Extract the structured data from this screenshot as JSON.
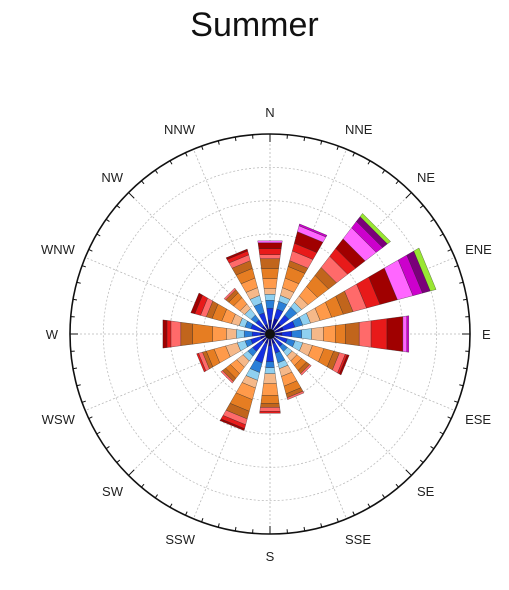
{
  "chart_data": {
    "type": "wind-rose",
    "title": "Summer",
    "directions": [
      "N",
      "NNE",
      "NE",
      "ENE",
      "E",
      "ESE",
      "SE",
      "SSE",
      "S",
      "SSW",
      "SW",
      "WSW",
      "W",
      "WNW",
      "NW",
      "NNW"
    ],
    "rlim": [
      0,
      1
    ],
    "grid": true,
    "band_colors": [
      "#0a0a9a",
      "#1530e0",
      "#2a7fd8",
      "#8fd0f0",
      "#f5b889",
      "#ff9a4a",
      "#e67d22",
      "#c1651c",
      "#ff6a6a",
      "#e81a1a",
      "#a00000",
      "#ff66ff",
      "#cc00cc",
      "#7a007a",
      "#99e633"
    ],
    "stacks": [
      {
        "direction": "N",
        "segments": [
          0.07,
          0.06,
          0.04,
          0.03,
          0.03,
          0.05,
          0.05,
          0.05,
          0.02,
          0.03,
          0.03,
          0.01
        ]
      },
      {
        "direction": "NNE",
        "segments": [
          0.08,
          0.05,
          0.04,
          0.03,
          0.04,
          0.05,
          0.06,
          0.03,
          0.05,
          0.04,
          0.06,
          0.03,
          0.01
        ]
      },
      {
        "direction": "NE",
        "segments": [
          0.07,
          0.05,
          0.05,
          0.03,
          0.04,
          0.06,
          0.07,
          0.05,
          0.07,
          0.05,
          0.06,
          0.07,
          0.04,
          0.03,
          0.02
        ]
      },
      {
        "direction": "ENE",
        "segments": [
          0.07,
          0.06,
          0.04,
          0.04,
          0.05,
          0.06,
          0.06,
          0.05,
          0.07,
          0.07,
          0.09,
          0.08,
          0.05,
          0.04,
          0.03
        ]
      },
      {
        "direction": "E",
        "segments": [
          0.06,
          0.05,
          0.05,
          0.05,
          0.06,
          0.06,
          0.05,
          0.07,
          0.06,
          0.08,
          0.08,
          0.02,
          0.01
        ]
      },
      {
        "direction": "ESE",
        "segments": [
          0.04,
          0.05,
          0.04,
          0.04,
          0.05,
          0.06,
          0.05,
          0.03,
          0.03,
          0.01,
          0.01
        ]
      },
      {
        "direction": "SE",
        "segments": [
          0.04,
          0.04,
          0.03,
          0.03,
          0.03,
          0.03,
          0.03,
          0.02,
          0.01
        ]
      },
      {
        "direction": "SSE",
        "segments": [
          0.05,
          0.05,
          0.05,
          0.03,
          0.04,
          0.05,
          0.04,
          0.02,
          0.01
        ]
      },
      {
        "direction": "S",
        "segments": [
          0.06,
          0.08,
          0.03,
          0.03,
          0.05,
          0.06,
          0.04,
          0.02,
          0.02,
          0.01
        ]
      },
      {
        "direction": "SSW",
        "segments": [
          0.05,
          0.1,
          0.05,
          0.04,
          0.04,
          0.06,
          0.06,
          0.04,
          0.03,
          0.02,
          0.01
        ]
      },
      {
        "direction": "SW",
        "segments": [
          0.05,
          0.06,
          0.03,
          0.03,
          0.04,
          0.04,
          0.03,
          0.02,
          0.01
        ]
      },
      {
        "direction": "WSW",
        "segments": [
          0.05,
          0.05,
          0.03,
          0.04,
          0.06,
          0.06,
          0.04,
          0.02,
          0.02,
          0.01
        ]
      },
      {
        "direction": "W",
        "segments": [
          0.05,
          0.04,
          0.04,
          0.04,
          0.05,
          0.07,
          0.1,
          0.06,
          0.05,
          0.02,
          0.02
        ]
      },
      {
        "direction": "WNW",
        "segments": [
          0.05,
          0.05,
          0.03,
          0.03,
          0.04,
          0.05,
          0.05,
          0.03,
          0.03,
          0.03,
          0.02
        ]
      },
      {
        "direction": "NW",
        "segments": [
          0.05,
          0.04,
          0.03,
          0.04,
          0.03,
          0.04,
          0.03,
          0.02,
          0.01
        ]
      },
      {
        "direction": "NNW",
        "segments": [
          0.05,
          0.06,
          0.05,
          0.04,
          0.04,
          0.05,
          0.05,
          0.04,
          0.03,
          0.02,
          0.01
        ]
      }
    ]
  }
}
